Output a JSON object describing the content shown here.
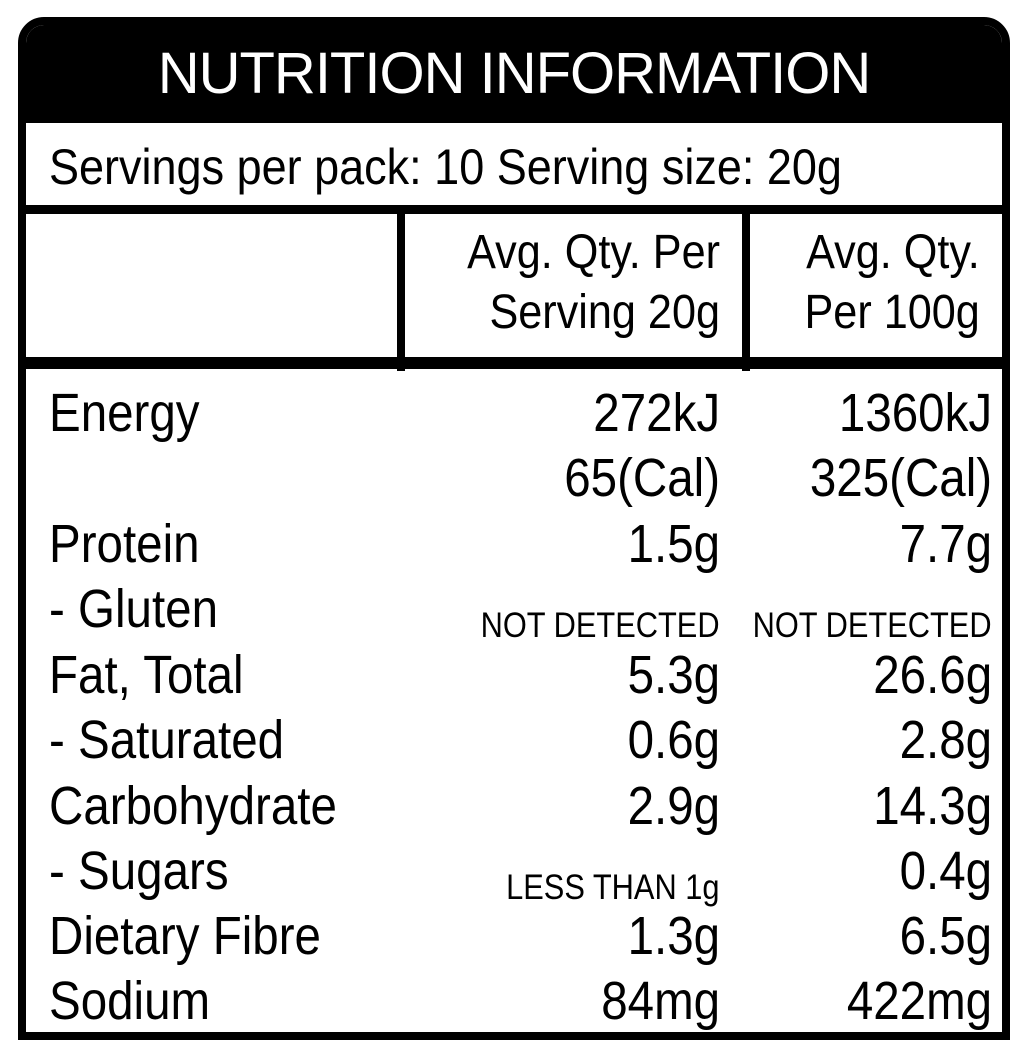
{
  "title": "NUTRITION INFORMATION",
  "servings_line": "Servings per pack: 10 Serving size: 20g",
  "headers": {
    "per_serving": [
      "Avg. Qty. Per",
      "Serving 20g"
    ],
    "per_100g": [
      "Avg. Qty.",
      "Per 100g"
    ]
  },
  "rows": [
    {
      "name": "Energy",
      "per_serving": "272kJ",
      "per_100g": "1360kJ"
    },
    {
      "name": "",
      "per_serving": "65(Cal)",
      "per_100g": "325(Cal)"
    },
    {
      "name": "Protein",
      "per_serving": "1.5g",
      "per_100g": "7.7g"
    },
    {
      "name": "- Gluten",
      "per_serving": "NOT DETECTED",
      "per_100g": "NOT DETECTED"
    },
    {
      "name": "Fat, Total",
      "per_serving": "5.3g",
      "per_100g": "26.6g"
    },
    {
      "name": "- Saturated",
      "per_serving": "0.6g",
      "per_100g": "2.8g"
    },
    {
      "name": "Carbohydrate",
      "per_serving": "2.9g",
      "per_100g": "14.3g"
    },
    {
      "name": "- Sugars",
      "per_serving": "LESS THAN 1g",
      "per_100g": "0.4g"
    },
    {
      "name": "Dietary Fibre",
      "per_serving": "1.3g",
      "per_100g": "6.5g"
    },
    {
      "name": "Sodium",
      "per_serving": "84mg",
      "per_100g": "422mg"
    }
  ],
  "colors": {
    "ink": "#000000",
    "paper": "#ffffff"
  }
}
